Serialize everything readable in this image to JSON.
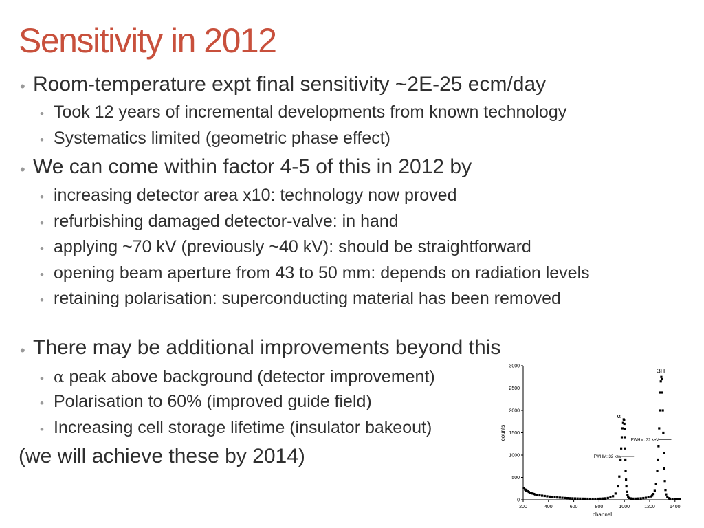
{
  "slide": {
    "title": "Sensitivity in 2012",
    "bullet_symbol": "•",
    "sections": [
      {
        "text": "Room-temperature expt final sensitivity ~2E-25 ecm/day",
        "subitems": [
          "Took 12 years of incremental developments from known technology",
          "Systematics limited (geometric phase effect)"
        ]
      },
      {
        "text": "We can come within factor 4-5 of this in 2012 by",
        "subitems": [
          "increasing detector area x10: technology now proved",
          "refurbishing damaged detector-valve: in hand",
          "applying ~70 kV (previously ~40 kV): should be straightforward",
          "opening beam aperture from 43 to 50 mm: depends on radiation levels",
          "retaining polarisation: superconducting material has been removed"
        ]
      },
      {
        "text": "There may be additional improvements beyond this",
        "alpha_symbol": "α",
        "subitems": [
          " peak above background (detector improvement)",
          "Polarisation to 60% (improved guide field)",
          "Increasing cell storage lifetime (insulator bakeout)"
        ]
      }
    ],
    "closing": "(we will achieve these by 2014)"
  },
  "chart_data": {
    "type": "scatter",
    "title": "",
    "xlabel": "channel",
    "ylabel": "counts",
    "xlim": [
      200,
      1450
    ],
    "ylim": [
      0,
      3000
    ],
    "xticks": [
      "200",
      "400",
      "600",
      "800",
      "1000",
      "1200",
      "1400"
    ],
    "yticks": [
      "0",
      "500",
      "1000",
      "1500",
      "2000",
      "2500",
      "3000"
    ],
    "grid": false,
    "legend": "none",
    "series": [
      {
        "x": [
          205,
          215,
          225,
          235,
          245,
          255,
          265,
          275,
          285,
          295,
          310,
          330,
          350,
          370,
          390,
          410,
          430,
          450,
          470,
          490,
          510,
          530,
          550,
          570,
          590,
          610,
          630,
          650,
          670,
          690,
          710,
          730,
          750,
          770,
          790,
          810,
          830,
          850,
          870,
          890,
          910,
          930,
          950,
          960,
          970,
          975,
          980,
          985,
          990,
          995,
          998,
          1000,
          1002,
          1004,
          1006,
          1008,
          1010,
          1013,
          1016,
          1020,
          1025,
          1030,
          1040,
          1050,
          1070,
          1090,
          1110,
          1130,
          1150,
          1170,
          1190,
          1210,
          1220,
          1230,
          1240,
          1250,
          1260,
          1265,
          1270,
          1275,
          1280,
          1284,
          1288,
          1292,
          1296,
          1300,
          1304,
          1308,
          1312,
          1316,
          1320,
          1325,
          1330,
          1340,
          1350,
          1360,
          1380,
          1400,
          1420,
          1440
        ],
        "y": [
          260,
          230,
          210,
          190,
          175,
          160,
          150,
          140,
          130,
          120,
          110,
          100,
          92,
          85,
          78,
          70,
          64,
          58,
          52,
          48,
          44,
          40,
          37,
          34,
          32,
          30,
          28,
          26,
          25,
          24,
          23,
          22,
          22,
          22,
          23,
          25,
          28,
          32,
          40,
          55,
          80,
          140,
          300,
          520,
          900,
          1150,
          1400,
          1600,
          1720,
          1800,
          1780,
          1700,
          1580,
          1400,
          1150,
          900,
          650,
          450,
          300,
          180,
          110,
          70,
          40,
          30,
          25,
          25,
          28,
          32,
          38,
          45,
          55,
          75,
          95,
          130,
          200,
          350,
          650,
          900,
          1200,
          1600,
          2000,
          2400,
          2650,
          2750,
          2700,
          2400,
          2000,
          1500,
          1050,
          700,
          420,
          220,
          120,
          60,
          35,
          25,
          18,
          14,
          12,
          10
        ]
      }
    ],
    "annotations": [
      {
        "text": "α",
        "x": 990,
        "y": 1830
      },
      {
        "text": "3H",
        "x": 1290,
        "y": 2780
      },
      {
        "text": "FWHM: 32 keV",
        "x": 1000,
        "y": 970
      },
      {
        "text": "FWHM: 22 keV",
        "x": 1295,
        "y": 1350
      }
    ]
  }
}
